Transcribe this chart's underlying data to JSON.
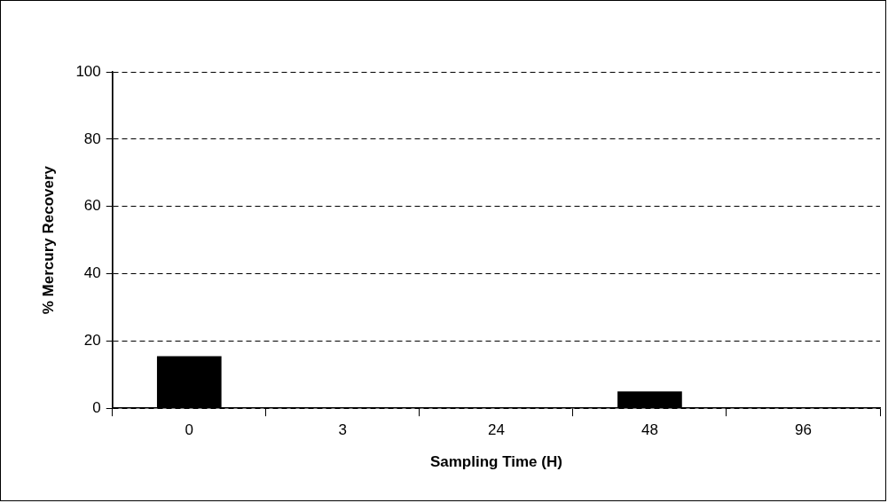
{
  "chart_data": {
    "type": "bar",
    "xlabel": "Sampling Time (H)",
    "ylabel": "% Mercury Recovery",
    "categories": [
      "0",
      "3",
      "24",
      "48",
      "96"
    ],
    "values": [
      15.5,
      0,
      0,
      5,
      0
    ],
    "color": "#000000",
    "ylim": [
      0,
      100
    ],
    "yticks": [
      0,
      20,
      40,
      60,
      80,
      100
    ],
    "grid": "y",
    "legend": false
  }
}
